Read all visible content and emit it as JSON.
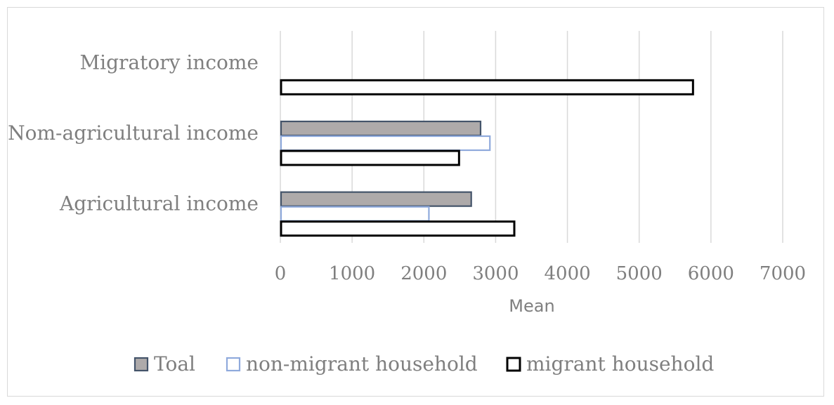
{
  "chart_data": {
    "type": "bar",
    "orientation": "horizontal",
    "categories": [
      "Agricultural income",
      "Nom-agricultural income",
      "Migratory income"
    ],
    "series": [
      {
        "name": "Toal",
        "values": [
          2660,
          2790,
          0
        ],
        "fill": "#aeaaaa",
        "stroke": "#44546a"
      },
      {
        "name": "non-migrant household",
        "values": [
          2070,
          2920,
          0
        ],
        "fill": "#ffffff",
        "stroke": "#8faadc"
      },
      {
        "name": "migrant household",
        "values": [
          3260,
          2490,
          5750
        ],
        "fill": "#ffffff",
        "stroke": "#000000"
      }
    ],
    "xlabel": "Mean",
    "xlim": [
      0,
      7000
    ],
    "xticks": [
      "0",
      "1000",
      "2000",
      "3000",
      "4000",
      "5000",
      "6000",
      "7000"
    ],
    "grid": true,
    "legend_position": "bottom"
  }
}
